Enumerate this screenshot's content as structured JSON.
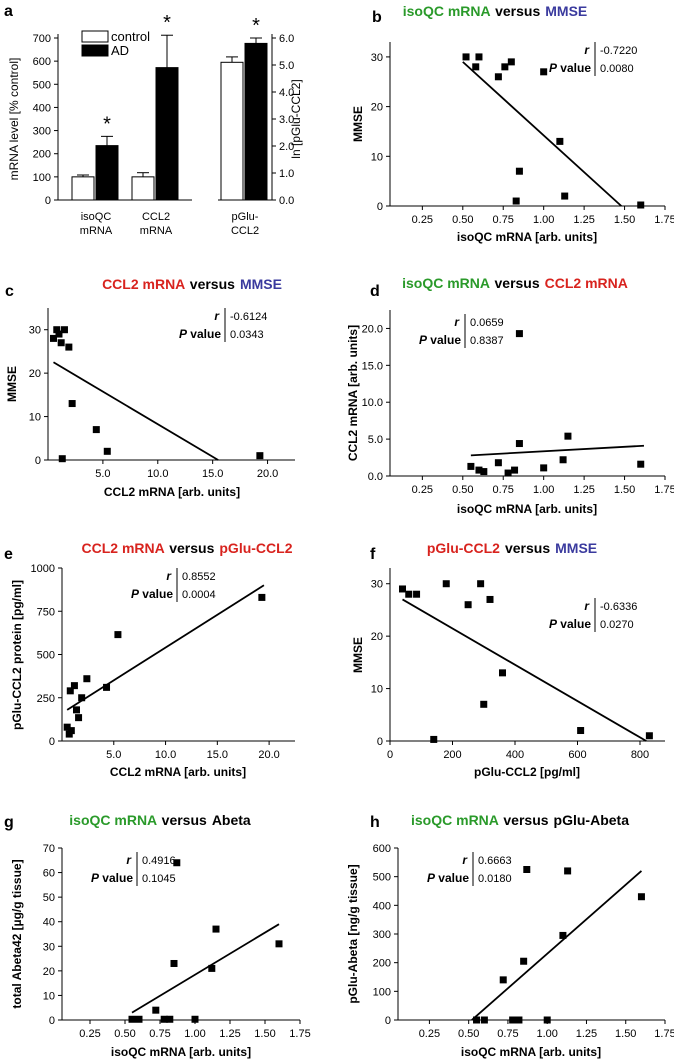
{
  "colors": {
    "green": "#2a9a2a",
    "red": "#d8231e",
    "blue": "#3a3a9e",
    "black": "#000000"
  },
  "chart_data": [
    {
      "panel": "a",
      "type": "bar",
      "legend": [
        "control",
        "AD"
      ],
      "left": {
        "categories": [
          "isoQC mRNA",
          "CCL2 mRNA"
        ],
        "series": [
          {
            "name": "control",
            "values": [
              100,
              100
            ],
            "errors": [
              8,
              18
            ]
          },
          {
            "name": "AD",
            "values": [
              235,
              572
            ],
            "errors": [
              40,
              140
            ]
          }
        ],
        "ylabel": "mRNA level [% control]",
        "ylim": [
          0,
          700
        ],
        "yticks": [
          "0",
          "100",
          "200",
          "300",
          "400",
          "500",
          "600",
          "700"
        ],
        "significance": [
          "*",
          "*"
        ]
      },
      "right": {
        "categories": [
          "pGlu-CCL2"
        ],
        "series": [
          {
            "name": "control",
            "values": [
              5.1
            ],
            "errors": [
              0.2
            ]
          },
          {
            "name": "AD",
            "values": [
              5.8
            ],
            "errors": [
              0.2
            ]
          }
        ],
        "ylabel": "ln [pGlu-CCL2]",
        "ylim": [
          0,
          6.0
        ],
        "yticks": [
          "0.0",
          "1.0",
          "2.0",
          "3.0",
          "4.0",
          "5.0",
          "6.0"
        ],
        "significance": [
          "*"
        ]
      }
    },
    {
      "panel": "b",
      "type": "scatter",
      "title": [
        "isoQC mRNA",
        "versus",
        "MMSE"
      ],
      "title_colors": [
        "green",
        "black",
        "blue"
      ],
      "xlabel": "isoQC mRNA [arb. units]",
      "ylabel": "MMSE",
      "xlim": [
        0.05,
        1.75
      ],
      "ylim": [
        0,
        33
      ],
      "xticks": [
        "0.25",
        "0.50",
        "0.75",
        "1.00",
        "1.25",
        "1.50",
        "1.75"
      ],
      "yticks": [
        "0",
        "10",
        "20",
        "30"
      ],
      "points": [
        [
          0.52,
          30
        ],
        [
          0.58,
          28
        ],
        [
          0.6,
          30
        ],
        [
          0.72,
          26
        ],
        [
          0.76,
          28
        ],
        [
          0.8,
          29
        ],
        [
          1.0,
          27
        ],
        [
          1.1,
          13
        ],
        [
          1.13,
          2
        ],
        [
          0.85,
          7
        ],
        [
          0.83,
          1
        ],
        [
          1.6,
          0.2
        ]
      ],
      "fit": [
        [
          0.5,
          29
        ],
        [
          1.48,
          0
        ]
      ],
      "stats_box": "top-right",
      "r": "-0.7220",
      "p": "0.0080"
    },
    {
      "panel": "c",
      "type": "scatter",
      "title": [
        "CCL2 mRNA",
        "versus",
        "MMSE"
      ],
      "title_colors": [
        "red",
        "black",
        "blue"
      ],
      "xlabel": "CCL2 mRNA [arb. units]",
      "ylabel": "MMSE",
      "xlim": [
        0,
        22.5
      ],
      "ylim": [
        0,
        35
      ],
      "xticks": [
        "5.0",
        "10.0",
        "15.0",
        "20.0"
      ],
      "yticks": [
        "0",
        "10",
        "20",
        "30"
      ],
      "points": [
        [
          0.5,
          28
        ],
        [
          0.8,
          30
        ],
        [
          1.0,
          29
        ],
        [
          1.2,
          27
        ],
        [
          1.5,
          30
        ],
        [
          1.9,
          26
        ],
        [
          2.2,
          13
        ],
        [
          4.4,
          7
        ],
        [
          5.4,
          2
        ],
        [
          1.3,
          0.3
        ],
        [
          19.3,
          1
        ]
      ],
      "fit": [
        [
          0.5,
          22.5
        ],
        [
          15.5,
          0
        ]
      ],
      "stats_box": "top-right",
      "r": "-0.6124",
      "p": "0.0343"
    },
    {
      "panel": "d",
      "type": "scatter",
      "title": [
        "isoQC mRNA",
        "versus",
        "CCL2 mRNA"
      ],
      "title_colors": [
        "green",
        "black",
        "red"
      ],
      "xlabel": "isoQC mRNA [arb. units]",
      "ylabel": "CCL2 mRNA [arb. units]",
      "xlim": [
        0.05,
        1.75
      ],
      "ylim": [
        0,
        22.5
      ],
      "xticks": [
        "0.25",
        "0.50",
        "0.75",
        "1.00",
        "1.25",
        "1.50",
        "1.75"
      ],
      "yticks": [
        "0.0",
        "5.0",
        "10.0",
        "15.0",
        "20.0"
      ],
      "points": [
        [
          0.55,
          1.3
        ],
        [
          0.6,
          0.8
        ],
        [
          0.63,
          0.6
        ],
        [
          0.72,
          1.8
        ],
        [
          0.78,
          0.4
        ],
        [
          0.82,
          0.8
        ],
        [
          0.85,
          4.4
        ],
        [
          1.0,
          1.1
        ],
        [
          1.12,
          2.2
        ],
        [
          1.15,
          5.4
        ],
        [
          1.6,
          1.6
        ],
        [
          0.85,
          19.3
        ]
      ],
      "fit": [
        [
          0.55,
          2.8
        ],
        [
          1.62,
          4.1
        ]
      ],
      "stats_box": "top-left",
      "r": "0.0659",
      "p": "0.8387"
    },
    {
      "panel": "e",
      "type": "scatter",
      "title": [
        "CCL2 mRNA",
        "versus",
        "pGlu-CCL2"
      ],
      "title_colors": [
        "red",
        "black",
        "red"
      ],
      "xlabel": "CCL2 mRNA [arb. units]",
      "ylabel": "pGlu-CCL2 protein [pg/ml]",
      "xlim": [
        0,
        22.5
      ],
      "ylim": [
        0,
        1000
      ],
      "xticks": [
        "5.0",
        "10.0",
        "15.0",
        "20.0"
      ],
      "yticks": [
        "0",
        "250",
        "500",
        "750",
        "1000"
      ],
      "points": [
        [
          0.5,
          80
        ],
        [
          0.7,
          40
        ],
        [
          0.9,
          60
        ],
        [
          0.8,
          290
        ],
        [
          1.2,
          320
        ],
        [
          1.4,
          180
        ],
        [
          1.6,
          135
        ],
        [
          1.9,
          250
        ],
        [
          2.4,
          360
        ],
        [
          4.3,
          310
        ],
        [
          5.4,
          615
        ],
        [
          19.3,
          830
        ]
      ],
      "fit": [
        [
          0.5,
          180
        ],
        [
          19.5,
          900
        ]
      ],
      "stats_box": "top-center",
      "r": "0.8552",
      "p": "0.0004"
    },
    {
      "panel": "f",
      "type": "scatter",
      "title": [
        "pGlu-CCL2",
        "versus",
        "MMSE"
      ],
      "title_colors": [
        "red",
        "black",
        "blue"
      ],
      "xlabel": "pGlu-CCL2 [pg/ml]",
      "ylabel": "MMSE",
      "xlim": [
        0,
        880
      ],
      "ylim": [
        0,
        33
      ],
      "xticks": [
        "0",
        "200",
        "400",
        "600",
        "800"
      ],
      "yticks": [
        "0",
        "10",
        "20",
        "30"
      ],
      "points": [
        [
          40,
          29
        ],
        [
          60,
          28
        ],
        [
          85,
          28
        ],
        [
          180,
          30
        ],
        [
          250,
          26
        ],
        [
          290,
          30
        ],
        [
          320,
          27
        ],
        [
          300,
          7
        ],
        [
          360,
          13
        ],
        [
          610,
          2
        ],
        [
          830,
          1
        ],
        [
          140,
          0.3
        ]
      ],
      "fit": [
        [
          40,
          27
        ],
        [
          820,
          0
        ]
      ],
      "stats_box": "middle-right",
      "r": "-0.6336",
      "p": "0.0270"
    },
    {
      "panel": "g",
      "type": "scatter",
      "title": [
        "isoQC mRNA",
        "versus",
        "Abeta"
      ],
      "title_colors": [
        "green",
        "black",
        "black"
      ],
      "xlabel": "isoQC mRNA [arb. units]",
      "ylabel": "total Abeta42 [µg/g tissue]",
      "xlim": [
        0.05,
        1.75
      ],
      "ylim": [
        0,
        70
      ],
      "xticks": [
        "0.25",
        "0.50",
        "0.75",
        "1.00",
        "1.25",
        "1.50",
        "1.75"
      ],
      "yticks": [
        "0",
        "10",
        "20",
        "30",
        "40",
        "50",
        "60",
        "70"
      ],
      "points": [
        [
          0.55,
          0.3
        ],
        [
          0.6,
          0.3
        ],
        [
          0.72,
          4
        ],
        [
          0.78,
          0.3
        ],
        [
          0.82,
          0.3
        ],
        [
          0.85,
          23
        ],
        [
          0.87,
          64
        ],
        [
          1.0,
          0.3
        ],
        [
          1.12,
          21
        ],
        [
          1.15,
          37
        ],
        [
          1.6,
          31
        ]
      ],
      "fit": [
        [
          0.55,
          3
        ],
        [
          1.6,
          39
        ]
      ],
      "stats_box": "top-left",
      "r": "0.4916",
      "p": "0.1045"
    },
    {
      "panel": "h",
      "type": "scatter",
      "title": [
        "isoQC mRNA",
        "versus",
        "pGlu-Abeta"
      ],
      "title_colors": [
        "green",
        "black",
        "black"
      ],
      "xlabel": "isoQC mRNA [arb. units]",
      "ylabel": "pGlu-Abeta [ng/g tissue]",
      "xlim": [
        0.05,
        1.75
      ],
      "ylim": [
        0,
        600
      ],
      "xticks": [
        "0.25",
        "0.50",
        "0.75",
        "1.00",
        "1.25",
        "1.50",
        "1.75"
      ],
      "yticks": [
        "0",
        "100",
        "200",
        "300",
        "400",
        "500",
        "600"
      ],
      "points": [
        [
          0.55,
          0
        ],
        [
          0.6,
          0
        ],
        [
          0.72,
          140
        ],
        [
          0.78,
          0
        ],
        [
          0.82,
          0
        ],
        [
          0.85,
          205
        ],
        [
          0.87,
          525
        ],
        [
          1.0,
          0
        ],
        [
          1.1,
          295
        ],
        [
          1.13,
          520
        ],
        [
          1.6,
          430
        ]
      ],
      "fit": [
        [
          0.52,
          0
        ],
        [
          1.6,
          520
        ]
      ],
      "stats_box": "top-left",
      "r": "0.6663",
      "p": "0.0180"
    }
  ]
}
